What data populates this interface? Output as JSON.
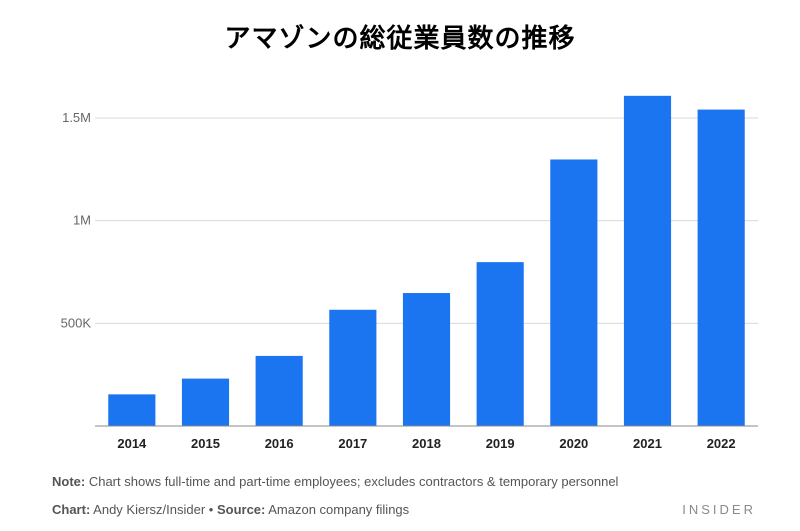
{
  "chart_data": {
    "type": "bar",
    "title": "アマゾンの総従業員数の推移",
    "categories": [
      "2014",
      "2015",
      "2016",
      "2017",
      "2018",
      "2019",
      "2020",
      "2021",
      "2022"
    ],
    "series": [
      {
        "values": [
          154100,
          230800,
          341400,
          566000,
          647500,
          798000,
          1298000,
          1608000,
          1541000
        ]
      }
    ],
    "ylim": [
      0,
      1500000
    ],
    "yticks": [
      500000,
      1000000,
      1500000
    ],
    "ytick_labels": [
      "500K",
      "1M",
      "1.5M"
    ],
    "grid": true,
    "bar_color": "#1b74f0",
    "grid_color": "#d9d9d9",
    "axis_color": "#888888"
  },
  "footer": {
    "note_label": "Note:",
    "note_text": " Chart shows full-time and part-time employees; excludes contractors & temporary personnel",
    "chart_label": "Chart:",
    "chart_text": " Andy Kiersz/Insider • ",
    "source_label": "Source:",
    "source_text": " Amazon company filings",
    "brand": "INSIDER"
  }
}
